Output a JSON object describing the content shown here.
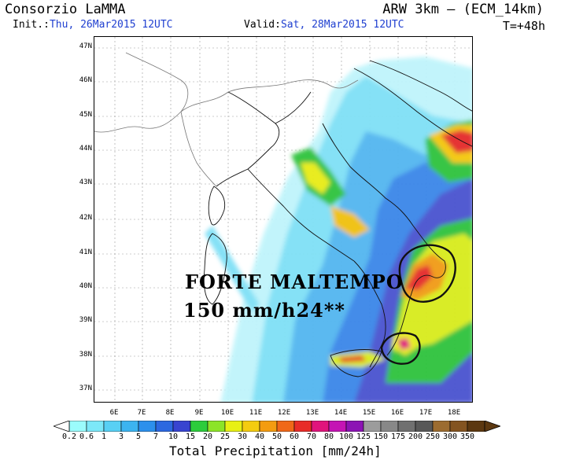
{
  "header": {
    "organization": "Consorzio LaMMA",
    "model": "ARW 3km – (ECM_14km)",
    "init_label": "Init.:",
    "init_value": "Thu, 26Mar2015 12UTC",
    "valid_label": "Valid:",
    "valid_value": "Sat, 28Mar2015 12UTC",
    "forecast_step": "T=+48h"
  },
  "map": {
    "latitude_labels": [
      "47N",
      "46N",
      "45N",
      "44N",
      "43N",
      "42N",
      "41N",
      "40N",
      "39N",
      "38N",
      "37N"
    ],
    "longitude_labels": [
      "6E",
      "7E",
      "8E",
      "9E",
      "10E",
      "11E",
      "12E",
      "13E",
      "14E",
      "15E",
      "16E",
      "17E",
      "18E"
    ],
    "overlay_text": [
      "FORTE MALTEMPO",
      "150 mm/h24**"
    ]
  },
  "legend": {
    "title": "Total Precipitation [mm/24h]",
    "ticks": [
      "0.2",
      "0.6",
      "1",
      "3",
      "5",
      "7",
      "10",
      "15",
      "20",
      "25",
      "30",
      "40",
      "50",
      "60",
      "70",
      "80",
      "100",
      "125",
      "150",
      "175",
      "200",
      "250",
      "300",
      "350"
    ],
    "colors": [
      "#9bfcfc",
      "#7ce8f8",
      "#58d0f4",
      "#3cb4f0",
      "#2c90ec",
      "#2c68e0",
      "#3844d0",
      "#2ccc3c",
      "#8ce428",
      "#e8f014",
      "#f4cc10",
      "#f49c10",
      "#f06818",
      "#e82c28",
      "#e0147c",
      "#c414b4",
      "#8c14b4",
      "#9c9c9c",
      "#888888",
      "#707070",
      "#585858",
      "#9c6c30",
      "#845420",
      "#5c3810"
    ],
    "range_low_color": "#ffffff",
    "range_high_color": "#5c3810"
  }
}
